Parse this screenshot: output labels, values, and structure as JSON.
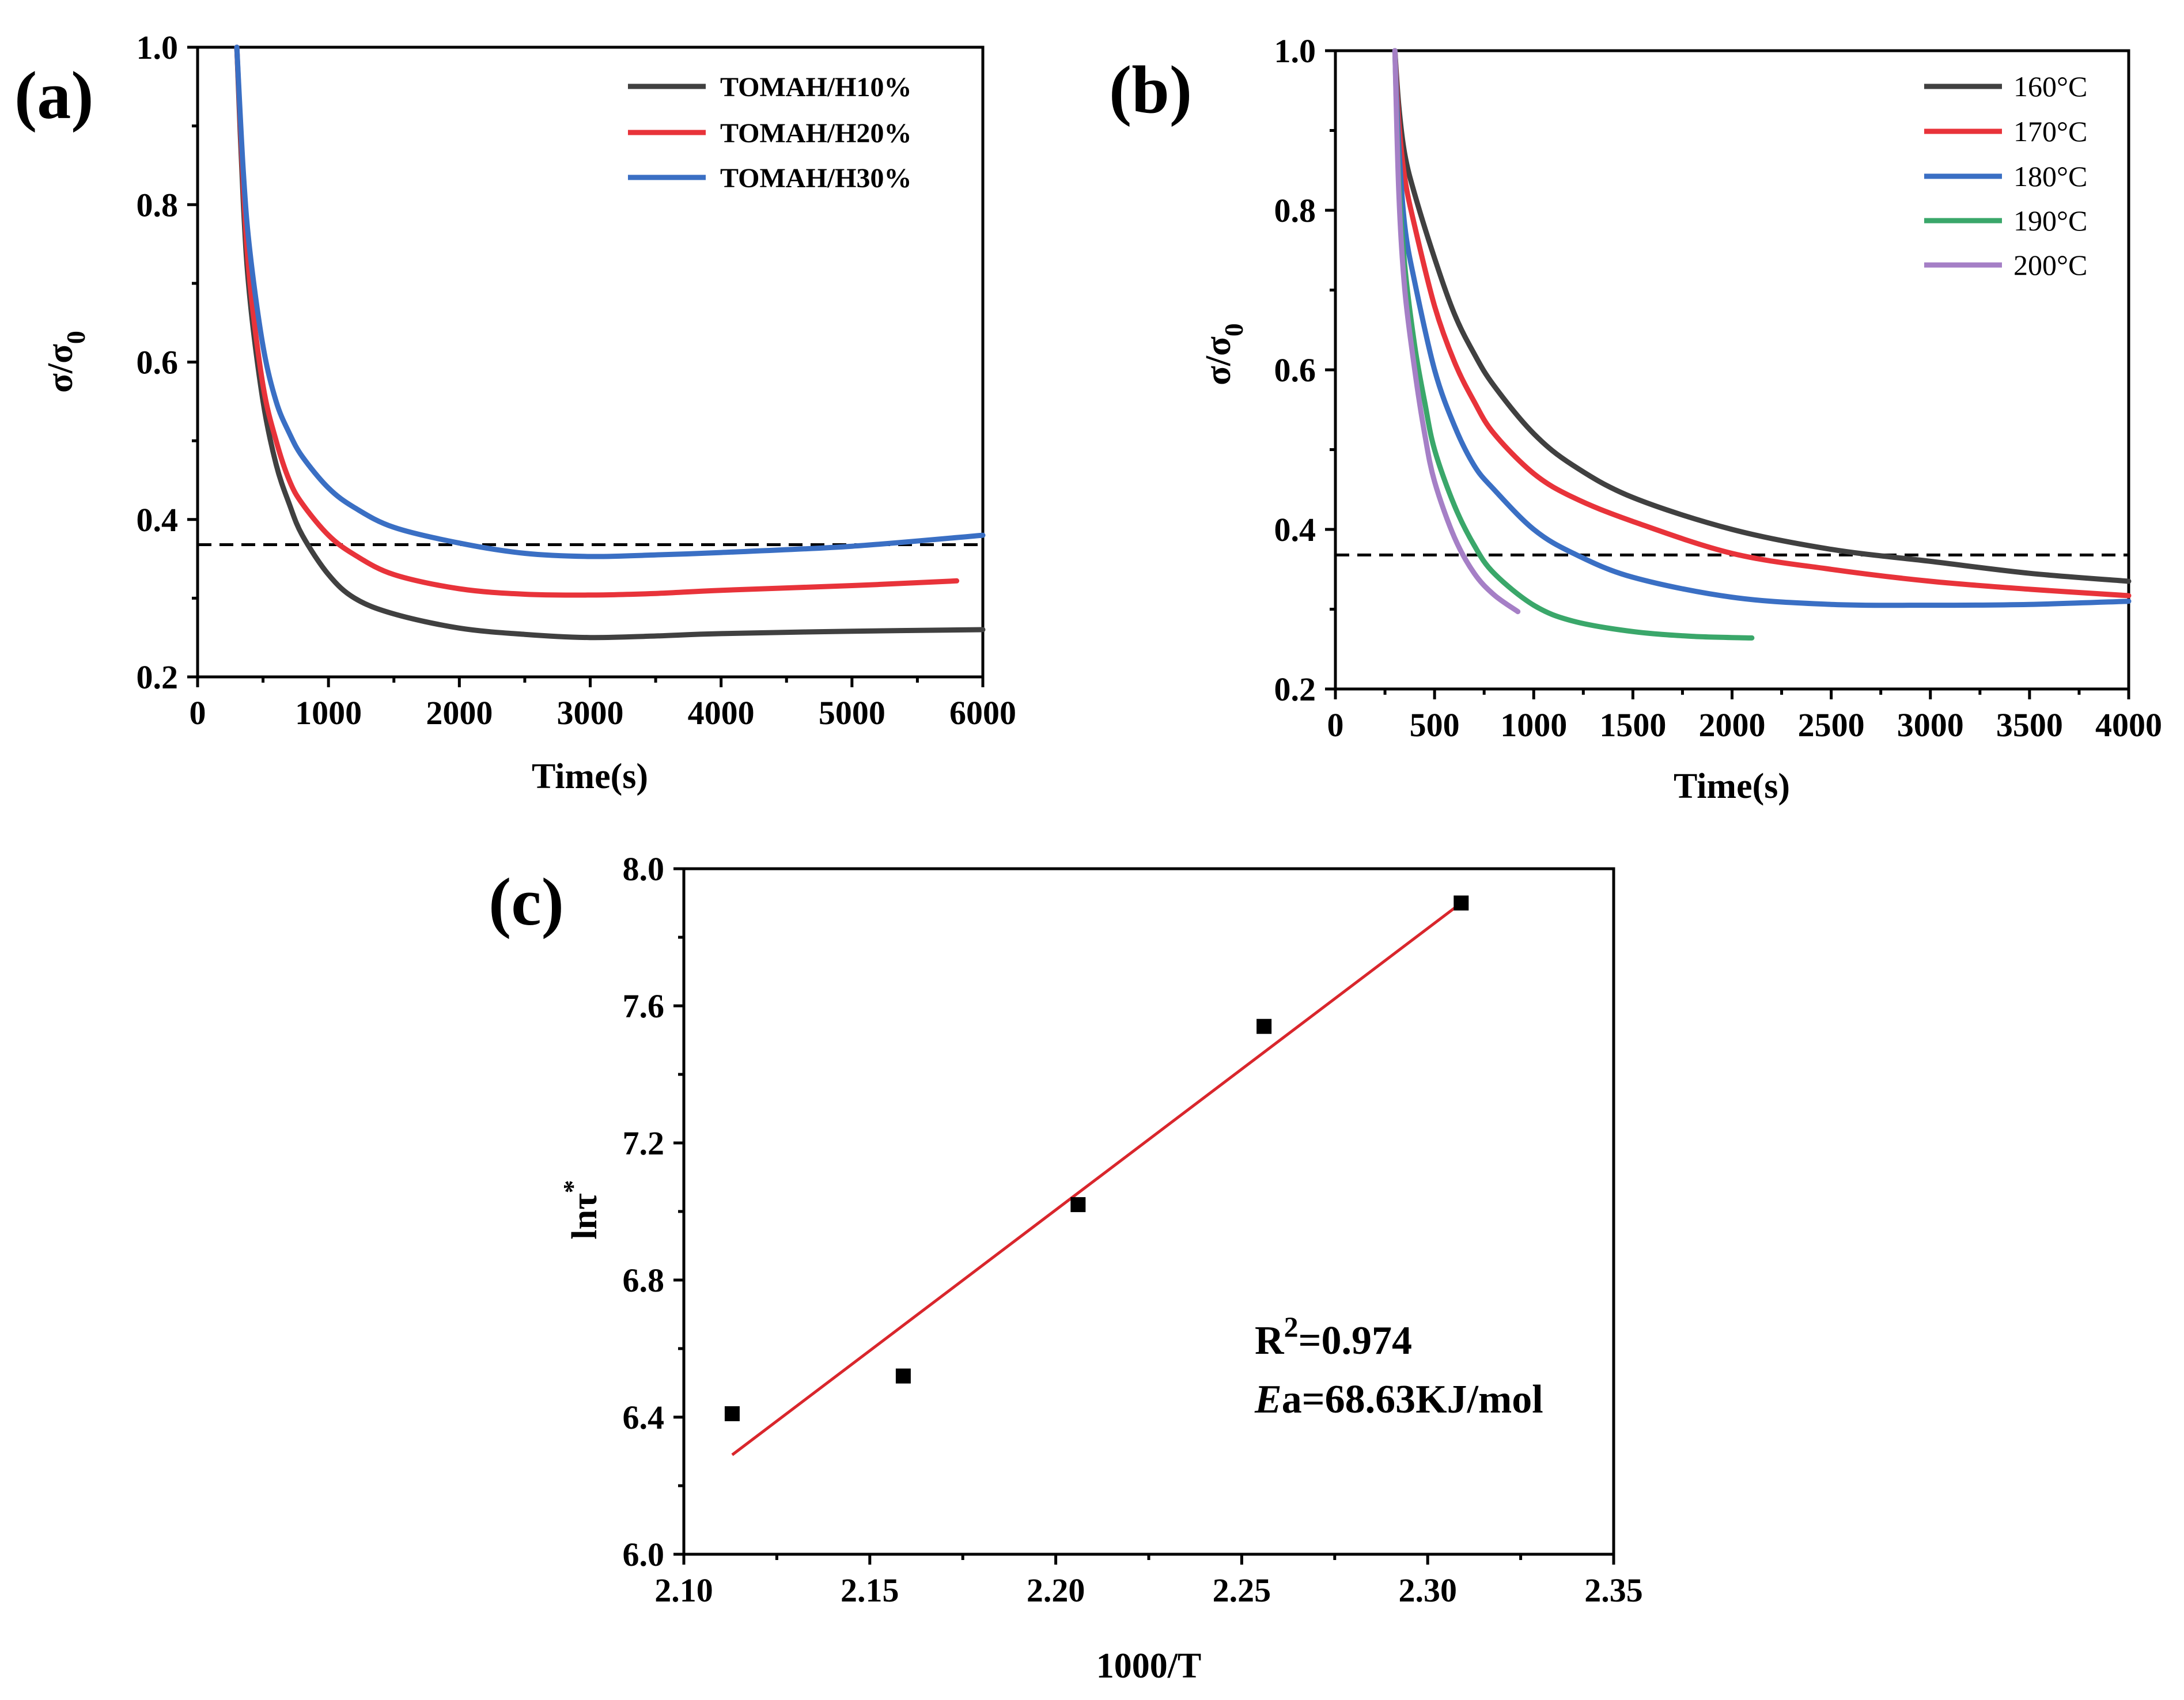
{
  "colors": {
    "gray": "#404040",
    "red": "#e8333a",
    "blue": "#3a6fc4",
    "green": "#3aa76a",
    "purple": "#a57fc6",
    "fit": "#d9262c",
    "ref": "#000000"
  },
  "chart_data": [
    {
      "id": "a",
      "panel_label": "(a)",
      "type": "line",
      "xlabel": "Time(s)",
      "ylabel_main": "σ/σ",
      "ylabel_sub": "0",
      "xlim": [
        0,
        6000
      ],
      "ylim": [
        0.2,
        1.0
      ],
      "xticks": [
        "0",
        "1000",
        "2000",
        "3000",
        "4000",
        "5000",
        "6000"
      ],
      "yticks": [
        "0.2",
        "0.4",
        "0.6",
        "0.8",
        "1.0"
      ],
      "reference_y": 0.368,
      "series": [
        {
          "name": "TOMAH/H10%",
          "color": "gray",
          "x": [
            300,
            350,
            400,
            500,
            600,
            700,
            800,
            1000,
            1200,
            1500,
            2000,
            2500,
            3000,
            3500,
            4000,
            5000,
            6000
          ],
          "y": [
            1.0,
            0.8,
            0.68,
            0.55,
            0.47,
            0.42,
            0.38,
            0.33,
            0.3,
            0.28,
            0.262,
            0.254,
            0.25,
            0.252,
            0.255,
            0.258,
            0.26
          ]
        },
        {
          "name": "TOMAH/H20%",
          "color": "red",
          "x": [
            300,
            350,
            400,
            500,
            600,
            700,
            800,
            1000,
            1200,
            1500,
            2000,
            2500,
            3000,
            3500,
            4000,
            5000,
            5800
          ],
          "y": [
            1.0,
            0.82,
            0.7,
            0.57,
            0.5,
            0.45,
            0.42,
            0.38,
            0.355,
            0.33,
            0.312,
            0.305,
            0.304,
            0.306,
            0.31,
            0.316,
            0.322
          ]
        },
        {
          "name": "TOMAH/H30%",
          "color": "blue",
          "x": [
            300,
            350,
            400,
            500,
            600,
            700,
            800,
            1000,
            1200,
            1500,
            2000,
            2500,
            3000,
            3500,
            4000,
            5000,
            6000
          ],
          "y": [
            1.0,
            0.84,
            0.74,
            0.62,
            0.55,
            0.51,
            0.48,
            0.44,
            0.415,
            0.39,
            0.37,
            0.357,
            0.353,
            0.355,
            0.358,
            0.366,
            0.38
          ]
        }
      ]
    },
    {
      "id": "b",
      "panel_label": "(b)",
      "type": "line",
      "xlabel": "Time(s)",
      "ylabel_main": "σ/σ",
      "ylabel_sub": "0",
      "xlim": [
        0,
        4000
      ],
      "ylim": [
        0.2,
        1.0
      ],
      "xticks": [
        "0",
        "500",
        "1000",
        "1500",
        "2000",
        "2500",
        "3000",
        "3500",
        "4000"
      ],
      "yticks": [
        "0.2",
        "0.4",
        "0.6",
        "0.8",
        "1.0"
      ],
      "reference_y": 0.368,
      "series": [
        {
          "name": "160°C",
          "color": "gray",
          "x": [
            300,
            320,
            350,
            400,
            500,
            600,
            700,
            800,
            1000,
            1200,
            1500,
            2000,
            2500,
            3000,
            3500,
            4000
          ],
          "y": [
            1.0,
            0.93,
            0.87,
            0.82,
            0.74,
            0.67,
            0.62,
            0.58,
            0.52,
            0.48,
            0.44,
            0.4,
            0.375,
            0.36,
            0.345,
            0.335
          ]
        },
        {
          "name": "170°C",
          "color": "red",
          "x": [
            300,
            320,
            350,
            400,
            500,
            600,
            700,
            800,
            1000,
            1200,
            1500,
            2000,
            2500,
            3000,
            3500,
            4000
          ],
          "y": [
            1.0,
            0.91,
            0.84,
            0.78,
            0.68,
            0.61,
            0.56,
            0.52,
            0.47,
            0.44,
            0.41,
            0.37,
            0.35,
            0.335,
            0.325,
            0.317
          ]
        },
        {
          "name": "180°C",
          "color": "blue",
          "x": [
            300,
            320,
            350,
            400,
            500,
            600,
            700,
            800,
            1000,
            1200,
            1500,
            2000,
            2500,
            3000,
            3500,
            4000
          ],
          "y": [
            1.0,
            0.88,
            0.78,
            0.71,
            0.6,
            0.53,
            0.48,
            0.45,
            0.4,
            0.37,
            0.34,
            0.315,
            0.306,
            0.305,
            0.306,
            0.31
          ]
        },
        {
          "name": "190°C",
          "color": "green",
          "x": [
            300,
            320,
            350,
            400,
            450,
            500,
            600,
            700,
            800,
            1000,
            1200,
            1500,
            1800,
            2100
          ],
          "y": [
            1.0,
            0.84,
            0.73,
            0.63,
            0.56,
            0.5,
            0.43,
            0.38,
            0.345,
            0.305,
            0.285,
            0.272,
            0.266,
            0.264
          ]
        },
        {
          "name": "200°C",
          "color": "purple",
          "x": [
            300,
            320,
            350,
            400,
            450,
            500,
            600,
            700,
            800,
            920
          ],
          "y": [
            1.0,
            0.82,
            0.7,
            0.6,
            0.52,
            0.46,
            0.39,
            0.345,
            0.318,
            0.297
          ]
        }
      ]
    },
    {
      "id": "c",
      "panel_label": "(c)",
      "type": "scatter",
      "xlabel": "1000/T",
      "ylabel_main": "lnτ",
      "ylabel_sup": "*",
      "xlim": [
        2.1,
        2.35
      ],
      "ylim": [
        6.0,
        8.0
      ],
      "xticks": [
        "2.10",
        "2.15",
        "2.20",
        "2.25",
        "2.30",
        "2.35"
      ],
      "yticks": [
        "6.0",
        "6.4",
        "6.8",
        "7.2",
        "7.6",
        "8.0"
      ],
      "points": {
        "x": [
          2.113,
          2.159,
          2.206,
          2.256,
          2.309
        ],
        "y": [
          6.41,
          6.52,
          7.02,
          7.54,
          7.9
        ]
      },
      "fit": {
        "x": [
          2.113,
          2.309
        ],
        "y": [
          6.29,
          7.9
        ]
      },
      "annotation": {
        "r2_prefix": "R",
        "r2_sup": "2",
        "r2_value": "=0.974",
        "ea_italic": "E",
        "ea_rest": "a=68.63KJ/mol"
      }
    }
  ]
}
